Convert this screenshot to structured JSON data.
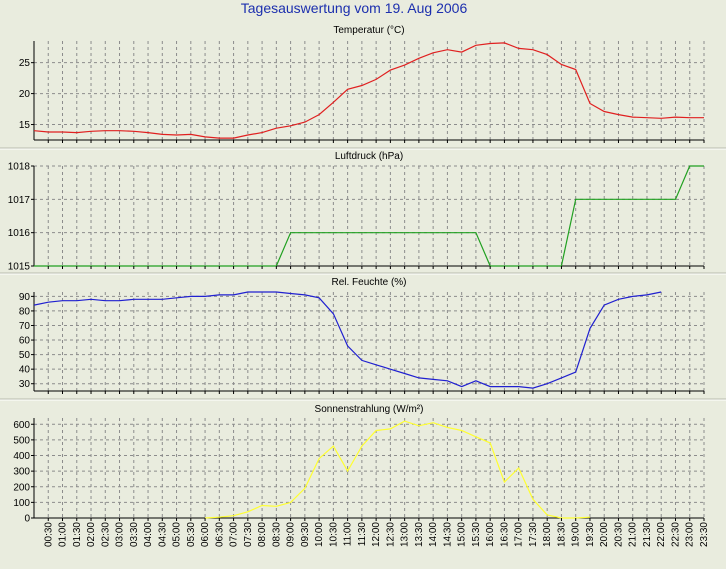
{
  "page": {
    "title": "Tagesauswertung vom 19. Aug 2006"
  },
  "colors": {
    "background": "#e9ecde",
    "title": "#1c2fae",
    "grid": "#8c8c8c",
    "temperature": "#e02020",
    "pressure": "#20a020",
    "humidity": "#2020d0",
    "solar": "#ffff30"
  },
  "x_axis": {
    "tick_labels": [
      "00:30",
      "01:00",
      "01:30",
      "02:00",
      "02:30",
      "03:00",
      "03:30",
      "04:00",
      "04:30",
      "05:00",
      "05:30",
      "06:00",
      "06:30",
      "07:00",
      "07:30",
      "08:00",
      "08:30",
      "09:00",
      "09:30",
      "10:00",
      "10:30",
      "11:00",
      "11:30",
      "12:00",
      "12:30",
      "13:00",
      "13:30",
      "14:00",
      "14:30",
      "15:00",
      "15:30",
      "16:00",
      "16:30",
      "17:00",
      "17:30",
      "18:00",
      "18:30",
      "19:00",
      "19:30",
      "20:00",
      "20:30",
      "21:00",
      "21:30",
      "22:00",
      "22:30",
      "23:00",
      "23:30"
    ]
  },
  "chart_data": [
    {
      "type": "line",
      "title": "Temperatur (°C)",
      "ylim": [
        12.5,
        28.5
      ],
      "yticks": [
        15,
        20,
        25
      ],
      "grid": true,
      "x": [
        "00:00",
        "00:30",
        "01:00",
        "01:30",
        "02:00",
        "02:30",
        "03:00",
        "03:30",
        "04:00",
        "04:30",
        "05:00",
        "05:30",
        "06:00",
        "06:30",
        "07:00",
        "07:30",
        "08:00",
        "08:30",
        "09:00",
        "09:30",
        "10:00",
        "10:30",
        "11:00",
        "11:30",
        "12:00",
        "12:30",
        "13:00",
        "13:30",
        "14:00",
        "14:30",
        "15:00",
        "15:30",
        "16:00",
        "16:30",
        "17:00",
        "17:30",
        "18:00",
        "18:30",
        "19:00",
        "19:30",
        "20:00",
        "20:30",
        "21:00",
        "21:30",
        "22:00",
        "22:30",
        "23:00",
        "23:30"
      ],
      "values": [
        14.0,
        13.8,
        13.8,
        13.7,
        13.9,
        14.0,
        14.0,
        13.9,
        13.7,
        13.4,
        13.3,
        13.4,
        13.0,
        12.8,
        12.8,
        13.3,
        13.7,
        14.4,
        14.8,
        15.4,
        16.6,
        18.6,
        20.7,
        21.3,
        22.3,
        23.8,
        24.6,
        25.7,
        26.6,
        27.1,
        26.7,
        27.8,
        28.1,
        28.2,
        27.3,
        27.1,
        26.3,
        24.7,
        23.9,
        18.4,
        17.1,
        16.6,
        16.2,
        16.1,
        16.0,
        16.2,
        16.1,
        16.1
      ]
    },
    {
      "type": "line",
      "title": "Luftdruck (hPa)",
      "ylim": [
        1015,
        1018
      ],
      "yticks": [
        1015,
        1016,
        1017,
        1018
      ],
      "grid": true,
      "x": [
        "00:00",
        "01:00",
        "02:00",
        "03:00",
        "04:00",
        "05:00",
        "06:00",
        "07:00",
        "08:00",
        "08:30",
        "09:00",
        "10:00",
        "11:00",
        "12:00",
        "13:00",
        "14:00",
        "15:00",
        "15:30",
        "16:00",
        "17:00",
        "18:00",
        "18:30",
        "19:00",
        "20:00",
        "21:00",
        "22:00",
        "22:30",
        "23:00",
        "23:30"
      ],
      "values": [
        1015,
        1015,
        1015,
        1015,
        1015,
        1015,
        1015,
        1015,
        1015,
        1015,
        1016,
        1016,
        1016,
        1016,
        1016,
        1016,
        1016,
        1016,
        1015,
        1015,
        1015,
        1015,
        1017,
        1017,
        1017,
        1017,
        1017,
        1018,
        1018
      ]
    },
    {
      "type": "line",
      "title": "Rel. Feuchte (%)",
      "ylim": [
        25,
        93
      ],
      "yticks": [
        30,
        40,
        50,
        60,
        70,
        80,
        90
      ],
      "grid": true,
      "x": [
        "00:00",
        "00:30",
        "01:00",
        "01:30",
        "02:00",
        "02:30",
        "03:00",
        "03:30",
        "04:00",
        "04:30",
        "05:00",
        "05:30",
        "06:00",
        "06:30",
        "07:00",
        "07:30",
        "08:00",
        "08:30",
        "09:00",
        "09:30",
        "10:00",
        "10:30",
        "11:00",
        "11:30",
        "12:00",
        "12:30",
        "13:00",
        "13:30",
        "14:00",
        "14:30",
        "15:00",
        "15:30",
        "16:00",
        "16:30",
        "17:00",
        "17:30",
        "18:00",
        "18:30",
        "19:00",
        "19:30",
        "20:00",
        "20:30",
        "21:00",
        "21:30",
        "22:00"
      ],
      "values": [
        84,
        86,
        87,
        87,
        88,
        87,
        87,
        88,
        88,
        88,
        89,
        90,
        90,
        91,
        91,
        93,
        93,
        93,
        92,
        91,
        89,
        78,
        56,
        46,
        43,
        40,
        37,
        34,
        33,
        32,
        28,
        32,
        28,
        28,
        28,
        27,
        30,
        34,
        38,
        68,
        84,
        88,
        90,
        91,
        93
      ]
    },
    {
      "type": "line",
      "title": "Sonnenstrahlung (W/m²)",
      "ylim": [
        0,
        640
      ],
      "yticks": [
        0,
        100,
        200,
        300,
        400,
        500,
        600
      ],
      "grid": true,
      "x": [
        "06:00",
        "06:30",
        "07:00",
        "07:30",
        "08:00",
        "08:30",
        "09:00",
        "09:30",
        "10:00",
        "10:30",
        "11:00",
        "11:30",
        "12:00",
        "12:30",
        "13:00",
        "13:30",
        "14:00",
        "14:30",
        "15:00",
        "15:30",
        "16:00",
        "16:30",
        "17:00",
        "17:30",
        "18:00",
        "18:30",
        "19:00",
        "19:30"
      ],
      "values": [
        0,
        5,
        15,
        40,
        80,
        75,
        100,
        190,
        380,
        460,
        300,
        460,
        560,
        570,
        620,
        590,
        610,
        580,
        560,
        520,
        480,
        230,
        320,
        120,
        20,
        0,
        0,
        5
      ]
    }
  ]
}
